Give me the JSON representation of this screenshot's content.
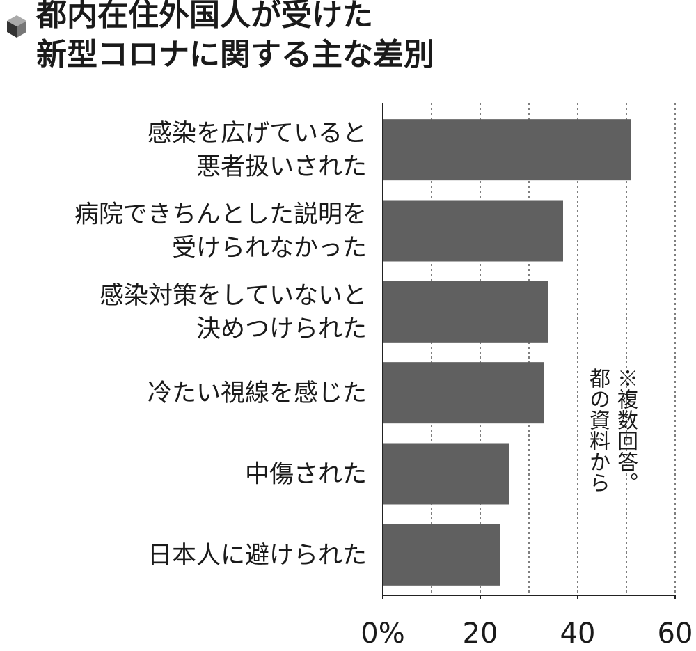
{
  "chart_data": {
    "type": "hbar",
    "title": "都内在住外国人が受けた\n新型コロナに関する主な差別",
    "note": "※複数回答。\n都の資料から",
    "categories": [
      "感染を広げていると\n悪者扱いされた",
      "病院できちんとした説明を\n受けられなかった",
      "感染対策をしていないと\n決めつけられた",
      "冷たい視線を感じた",
      "中傷された",
      "日本人に避けられた"
    ],
    "values": [
      51,
      37,
      34,
      33,
      26,
      24
    ],
    "color": "#606060",
    "xlim": [
      0,
      60
    ],
    "xticks": [
      {
        "value": 0,
        "label": "0%"
      },
      20,
      40,
      60
    ],
    "xgrid": [
      10,
      20,
      30,
      40,
      50,
      60
    ],
    "grid": true
  }
}
